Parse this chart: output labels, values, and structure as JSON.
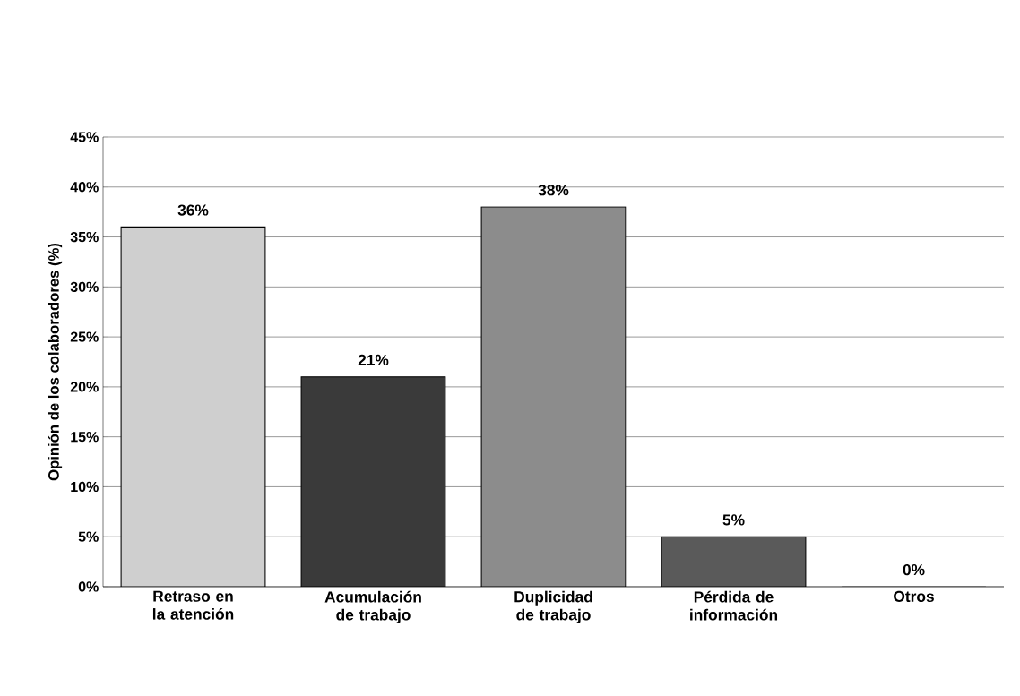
{
  "chart_data": {
    "type": "bar",
    "ylabel": "Opinión de los colaboradores (%)",
    "categories": [
      "Retraso en la atención",
      "Acumulación de trabajo",
      "Duplicidad de trabajo",
      "Pérdida de información",
      "Otros"
    ],
    "values": [
      36,
      21,
      38,
      5,
      0
    ],
    "colors": [
      "#cfcfcf",
      "#3a3a3a",
      "#8c8c8c",
      "#5a5a5a",
      "#ffffff"
    ],
    "value_labels": [
      "36%",
      "21%",
      "38%",
      "5%",
      "0%"
    ],
    "ylim": [
      0,
      45
    ],
    "yticks": [
      {
        "value": 0,
        "label": "0%"
      },
      {
        "value": 5,
        "label": "5%"
      },
      {
        "value": 10,
        "label": "10%"
      },
      {
        "value": 15,
        "label": "15%"
      },
      {
        "value": 20,
        "label": "20%"
      },
      {
        "value": 25,
        "label": "25%"
      },
      {
        "value": 30,
        "label": "30%"
      },
      {
        "value": 35,
        "label": "35%"
      },
      {
        "value": 40,
        "label": "40%"
      },
      {
        "value": 45,
        "label": "45%"
      }
    ],
    "grid": "y"
  }
}
